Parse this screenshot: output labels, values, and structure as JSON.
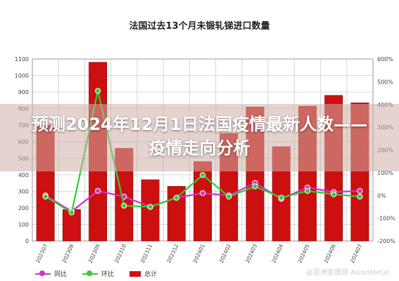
{
  "header": {
    "headline": "预测2024年12月1日法国疫情最新人数——疫情走向分析"
  },
  "watermark": "@亚洲金属网 AsianMetal",
  "colors": {
    "bar": "#cc1010",
    "tongbi": "#cc33cc",
    "huanbi": "#33cc33",
    "grid": "#d6d6d6"
  },
  "chart_data": {
    "type": "bar",
    "title": "法国过去13个月未锻轧锑进口数量",
    "categories": [
      "202307",
      "202308",
      "202309",
      "202310",
      "202311",
      "202312",
      "202401",
      "202402",
      "202403",
      "202404",
      "202405",
      "202406",
      "202407"
    ],
    "series": [
      {
        "name": "总计",
        "type": "bar",
        "axis": "left",
        "values": [
          700,
          190,
          1080,
          560,
          370,
          330,
          480,
          650,
          810,
          570,
          815,
          880,
          835
        ]
      },
      {
        "name": "同比",
        "type": "line",
        "axis": "right",
        "values": [
          0,
          -70,
          20,
          -5,
          -50,
          -10,
          10,
          0,
          55,
          -15,
          35,
          15,
          20
        ]
      },
      {
        "name": "环比",
        "type": "line",
        "axis": "right",
        "values": [
          -5,
          -75,
          460,
          -45,
          -50,
          -10,
          90,
          -5,
          40,
          -10,
          20,
          5,
          -5
        ]
      }
    ],
    "left_axis": {
      "min": 0,
      "max": 1100,
      "ticks": [
        "0",
        "100",
        "200",
        "300",
        "400",
        "500",
        "600",
        "700",
        "800",
        "900",
        "1000",
        "1100"
      ]
    },
    "right_axis": {
      "min": -200,
      "max": 600,
      "ticks": [
        "-200%",
        "-100%",
        "0%",
        "100%",
        "200%",
        "300%",
        "400%",
        "500%",
        "600%"
      ]
    },
    "legend": [
      "同比",
      "环比",
      "总计"
    ],
    "grid": true,
    "legend_position": "bottom-left"
  }
}
